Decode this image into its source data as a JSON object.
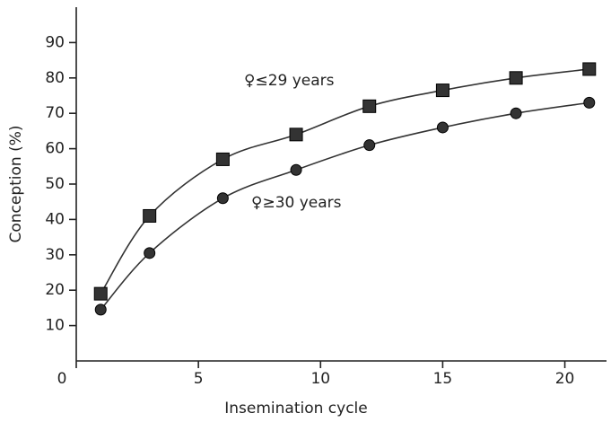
{
  "chart_data": {
    "type": "scatter",
    "x_label": "Insemination cycle",
    "y_label": "Conception (%)",
    "xlim": [
      0,
      22
    ],
    "ylim": [
      0,
      100
    ],
    "xticks": [
      0,
      5,
      10,
      15,
      20
    ],
    "yticks": [
      10,
      20,
      30,
      40,
      50,
      60,
      70,
      80,
      90
    ],
    "series": [
      {
        "name": "♀≤29 years",
        "marker": "square",
        "color": "#333",
        "x": [
          1,
          3,
          6,
          9,
          12,
          15,
          18,
          21
        ],
        "values": [
          19,
          41,
          57,
          64,
          72,
          76.5,
          80,
          82.5
        ]
      },
      {
        "name": "♀≥30 years",
        "marker": "circle",
        "color": "#333",
        "x": [
          1,
          3,
          6,
          9,
          12,
          15,
          18,
          21
        ],
        "values": [
          14.5,
          30.5,
          46,
          54,
          61,
          66,
          70,
          73
        ]
      }
    ]
  }
}
